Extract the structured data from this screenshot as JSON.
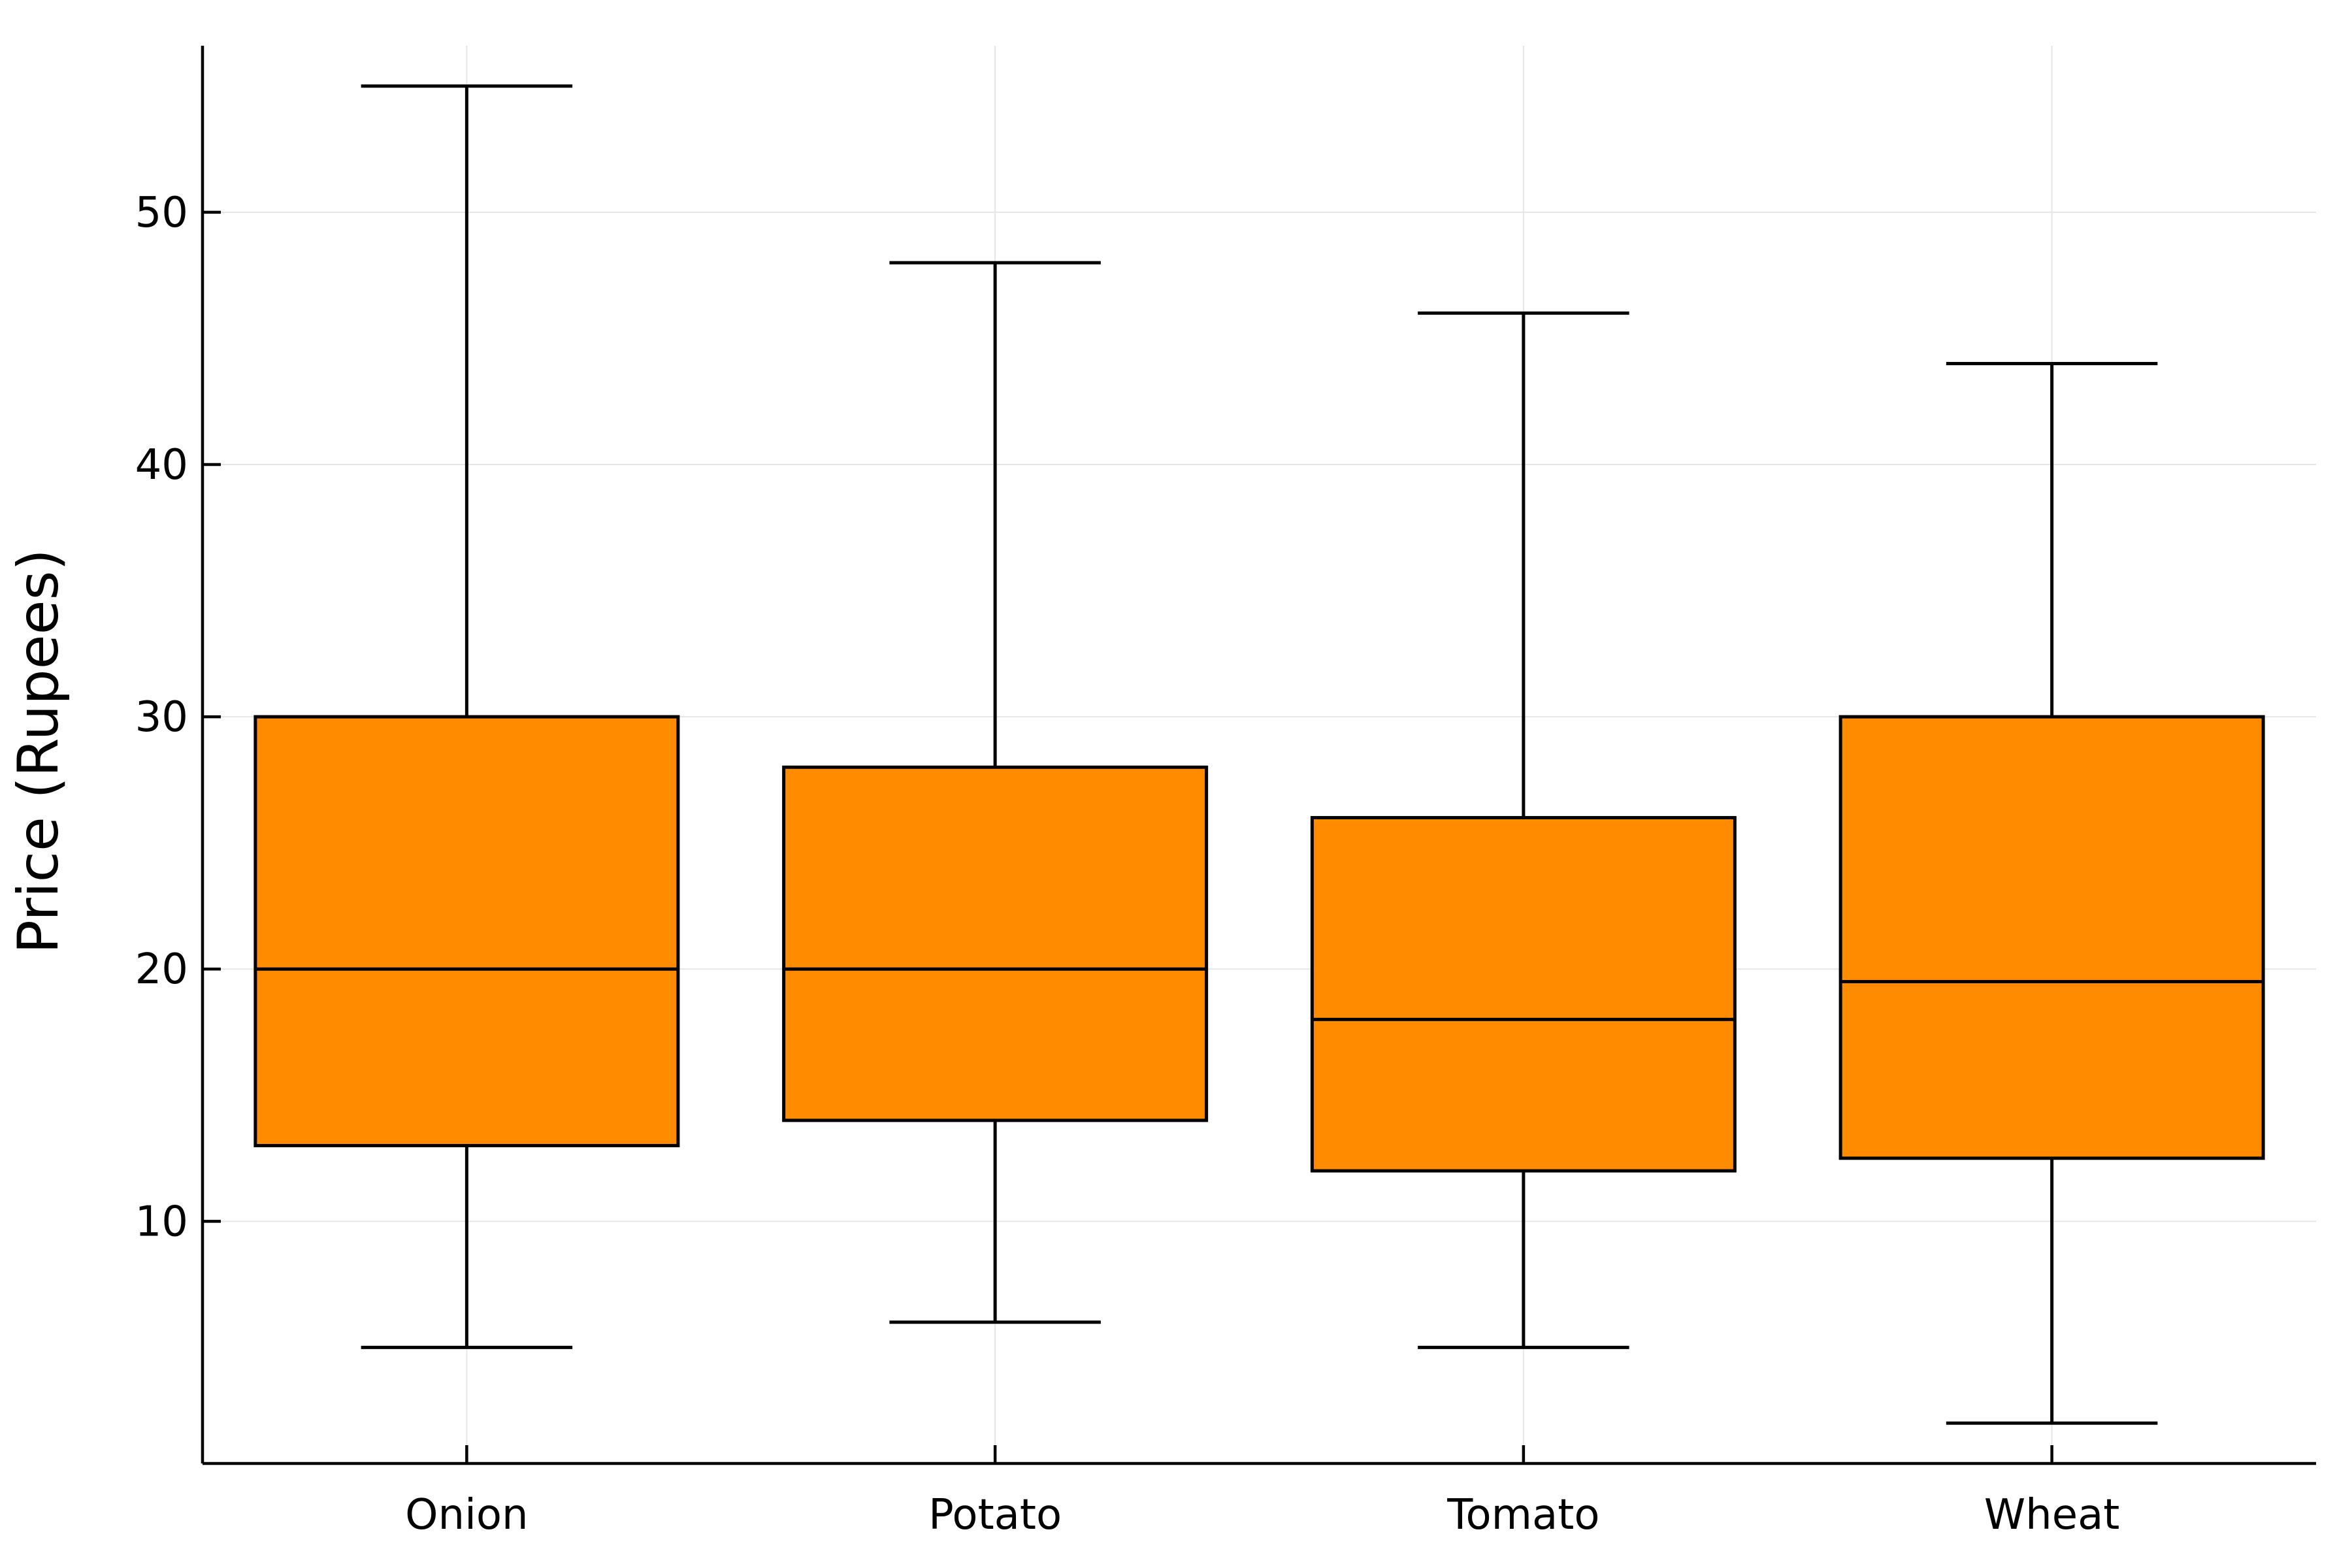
{
  "chart_data": {
    "type": "box",
    "title": "",
    "xlabel": "",
    "ylabel": "Price (Rupees)",
    "categories": [
      "Onion",
      "Potato",
      "Tomato",
      "Wheat"
    ],
    "boxes": [
      {
        "category": "Onion",
        "min": 5,
        "q1": 13,
        "median": 20,
        "q3": 30,
        "max": 55
      },
      {
        "category": "Potato",
        "min": 6,
        "q1": 14,
        "median": 20,
        "q3": 28,
        "max": 48
      },
      {
        "category": "Tomato",
        "min": 5,
        "q1": 12,
        "median": 18,
        "q3": 26,
        "max": 46
      },
      {
        "category": "Wheat",
        "min": 2,
        "q1": 12.5,
        "median": 19.5,
        "q3": 30,
        "max": 44
      }
    ],
    "yticks": [
      10,
      20,
      30,
      40,
      50
    ],
    "ylim": [
      0.4,
      56.6
    ],
    "grid": true,
    "box_color": "#ff8c00",
    "line_color": "#000000"
  }
}
